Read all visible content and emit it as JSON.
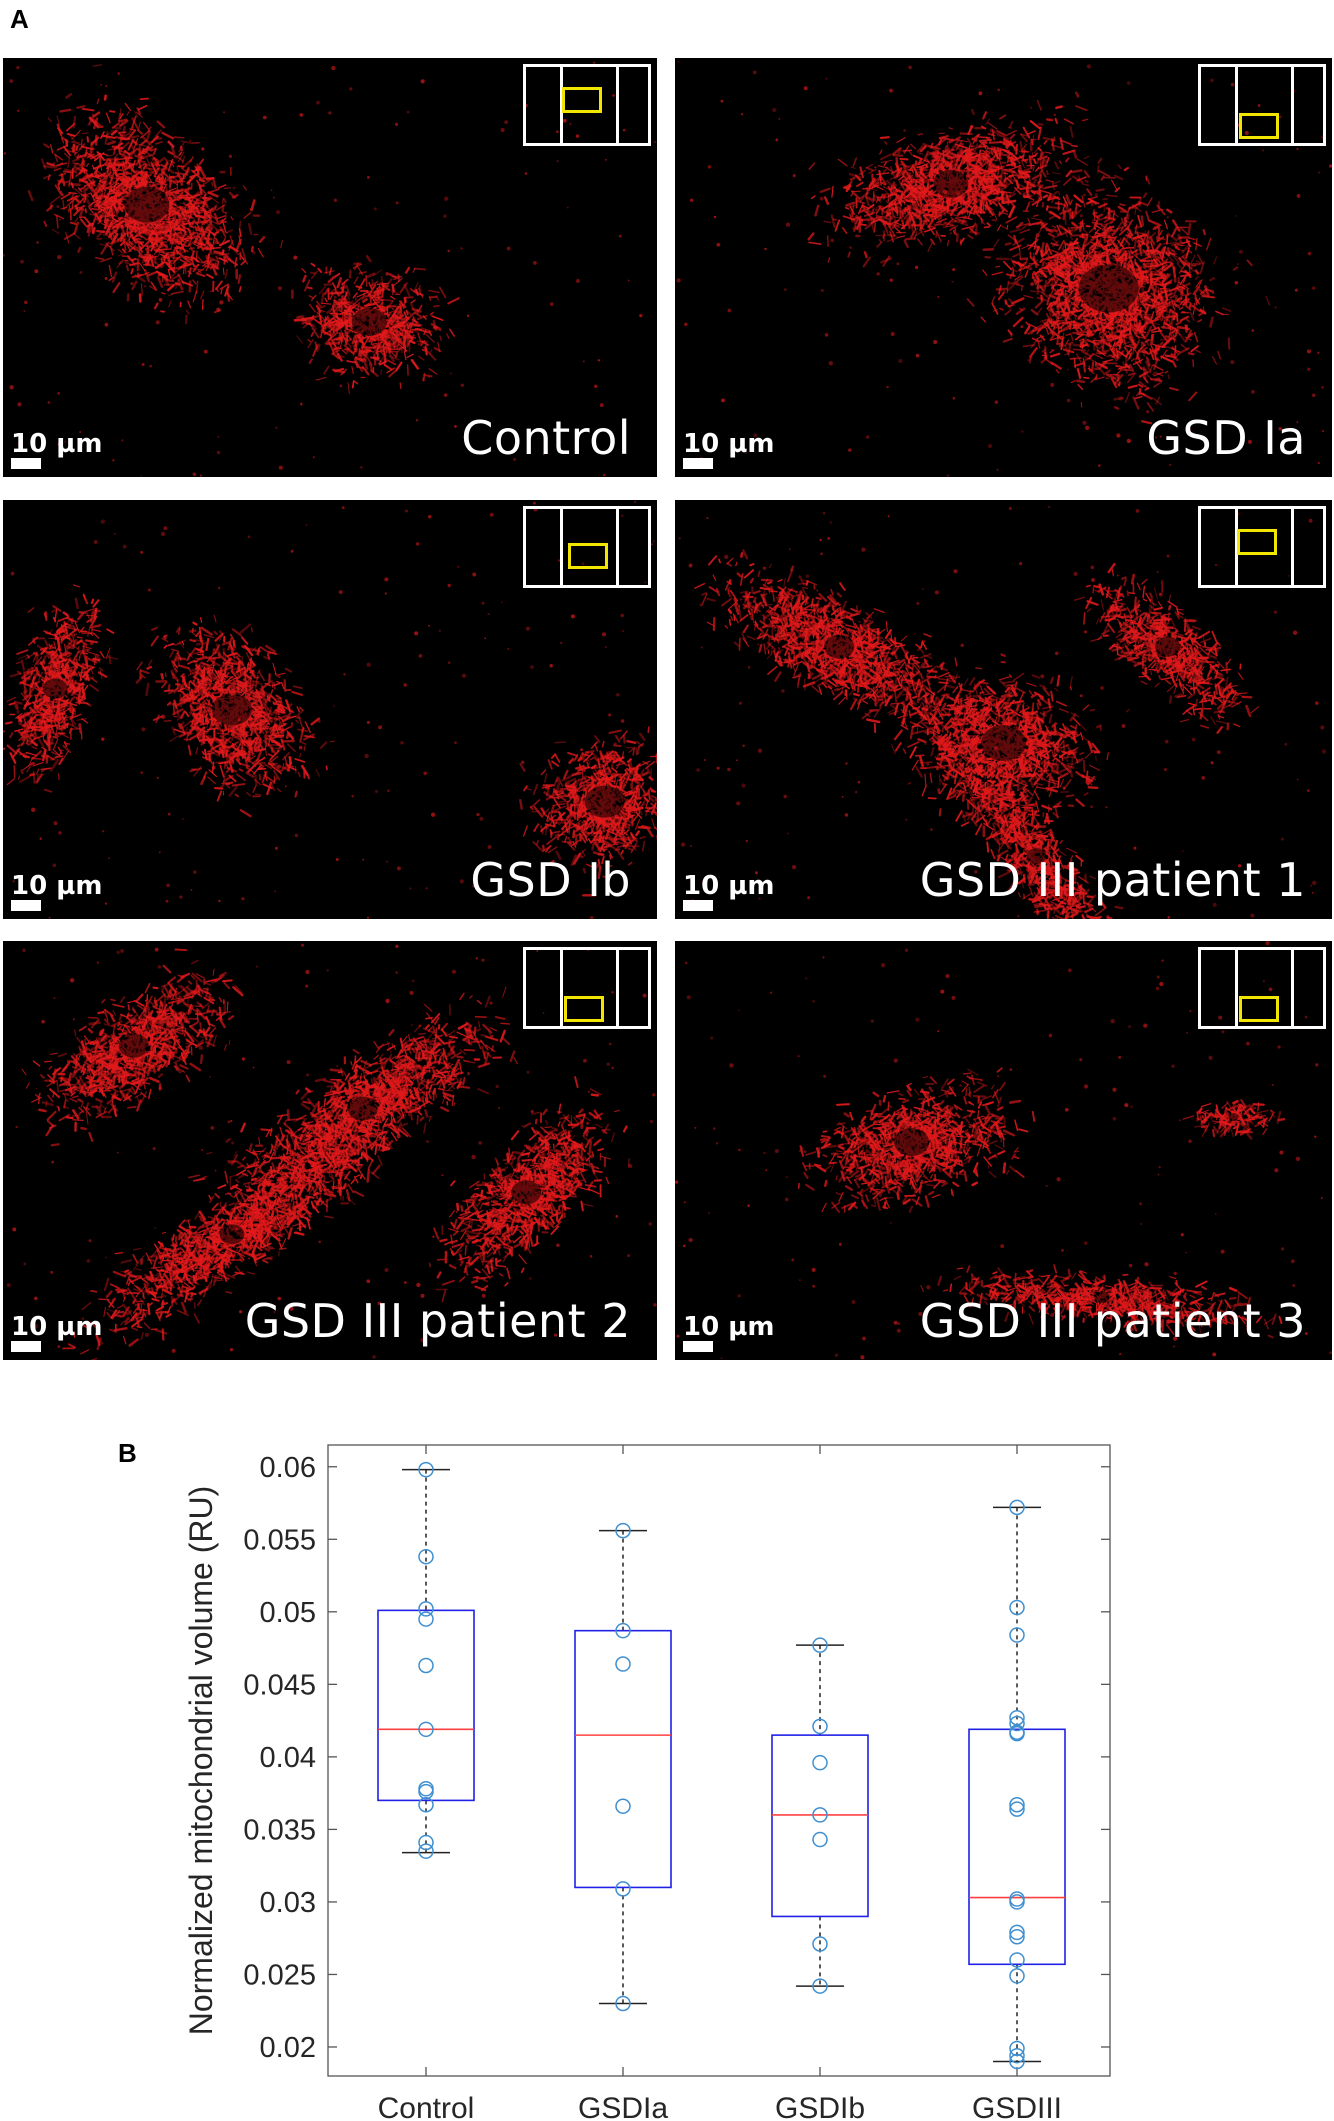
{
  "panel_a_label": "A",
  "panel_b_label": "B",
  "micrographs": [
    {
      "caption": "Control",
      "scale_label": "10 µm",
      "roi": "upper"
    },
    {
      "caption": "GSD Ia",
      "scale_label": "10 µm",
      "roi": "lower"
    },
    {
      "caption": "GSD Ib",
      "scale_label": "10 µm",
      "roi": "middle"
    },
    {
      "caption": "GSD III patient 1",
      "scale_label": "10 µm",
      "roi": "upper"
    },
    {
      "caption": "GSD III patient 2",
      "scale_label": "10 µm",
      "roi": "lower"
    },
    {
      "caption": "GSD III patient 3",
      "scale_label": "10 µm",
      "roi": "lower"
    }
  ],
  "colors": {
    "stain": "#e0191b",
    "inset_roi": "#f2e600",
    "box": "#2020e6",
    "median": "#ff4040",
    "points": "#3f8fd0",
    "whisker": "#222222"
  },
  "chart_data": {
    "type": "box",
    "title": "",
    "xlabel": "",
    "ylabel": "Normalized mitochondrial volume (RU)",
    "ylim": [
      0.018,
      0.0615
    ],
    "yticks": [
      0.02,
      0.025,
      0.03,
      0.035,
      0.04,
      0.045,
      0.05,
      0.055,
      0.06
    ],
    "ytick_labels": [
      "0.02",
      "0.025",
      "0.03",
      "0.035",
      "0.04",
      "0.045",
      "0.05",
      "0.055",
      "0.06"
    ],
    "grid": false,
    "categories": [
      "Control",
      "GSDIa",
      "GSDIb",
      "GSDIII"
    ],
    "boxes": [
      {
        "name": "Control",
        "q1": 0.037,
        "median": 0.0419,
        "q3": 0.0501,
        "whisker_low": 0.0334,
        "whisker_high": 0.0598
      },
      {
        "name": "GSDIa",
        "q1": 0.031,
        "median": 0.0415,
        "q3": 0.0487,
        "whisker_low": 0.023,
        "whisker_high": 0.0556
      },
      {
        "name": "GSDIb",
        "q1": 0.029,
        "median": 0.036,
        "q3": 0.0415,
        "whisker_low": 0.0242,
        "whisker_high": 0.0477
      },
      {
        "name": "GSDIII",
        "q1": 0.0257,
        "median": 0.0303,
        "q3": 0.0419,
        "whisker_low": 0.019,
        "whisker_high": 0.0572
      }
    ],
    "points": [
      [
        0.0598,
        0.0538,
        0.0502,
        0.0495,
        0.0463,
        0.0419,
        0.0378,
        0.0376,
        0.0367,
        0.0341,
        0.0335
      ],
      [
        0.0556,
        0.0487,
        0.0464,
        0.0366,
        0.0309,
        0.023
      ],
      [
        0.0477,
        0.0421,
        0.0396,
        0.036,
        0.0343,
        0.0271,
        0.0242
      ],
      [
        0.0572,
        0.0503,
        0.0484,
        0.0427,
        0.0423,
        0.0417,
        0.0416,
        0.0367,
        0.0364,
        0.0302,
        0.03,
        0.0279,
        0.0276,
        0.026,
        0.0249,
        0.0199,
        0.0194,
        0.019
      ]
    ]
  }
}
